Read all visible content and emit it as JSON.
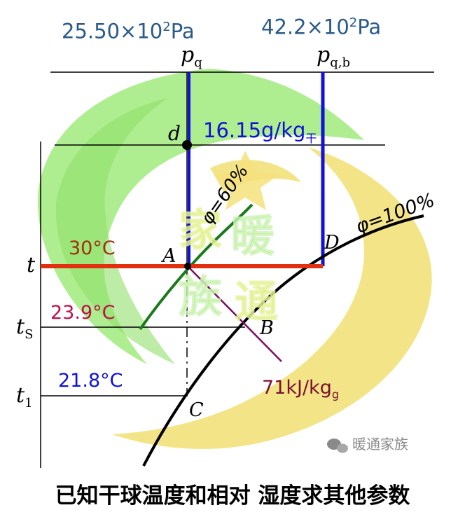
{
  "header": {
    "pq_value": "25.50×10",
    "pq_exp": "2",
    "pq_unit": "Pa",
    "pqb_value": "42.2×10",
    "pqb_exp": "2",
    "pqb_unit": "Pa"
  },
  "axis_labels": {
    "pq_main": "p",
    "pq_sub": "q",
    "pqb_main": "p",
    "pqb_sub": "q,b",
    "t": "t",
    "ts_main": "t",
    "ts_sub": "S",
    "t1_main": "t",
    "t1_sub": "1"
  },
  "points": {
    "d": "d",
    "A": "A",
    "B": "B",
    "C": "C",
    "D": "D"
  },
  "curves": {
    "phi60": "φ=60%",
    "phi100": "φ=100%"
  },
  "values": {
    "d_value": "16.15g/kg",
    "d_sub": "干",
    "t_dry": "30°C",
    "t_wet": "23.9°C",
    "t_dew": "21.8°C",
    "enthalpy": "71kJ/kg",
    "enthalpy_sub": "g"
  },
  "watermark": {
    "chars": [
      "家",
      "暖",
      "族",
      "通"
    ],
    "brand": "暖通家族"
  },
  "caption": "已知干球温度和相对 湿度求其他参数",
  "colors": {
    "header_blue": "#2a5a8a",
    "blue_line": "#1010e0",
    "red_line": "#e03010",
    "green_curve": "#1a7a1a",
    "purple_line": "#7a1060",
    "dry_bulb_text": "#a03010",
    "wet_bulb_text": "#c0104a",
    "enthalpy_text": "#7a1030",
    "swirl_green": "#9fe87a",
    "swirl_yellow": "#f0e070"
  }
}
